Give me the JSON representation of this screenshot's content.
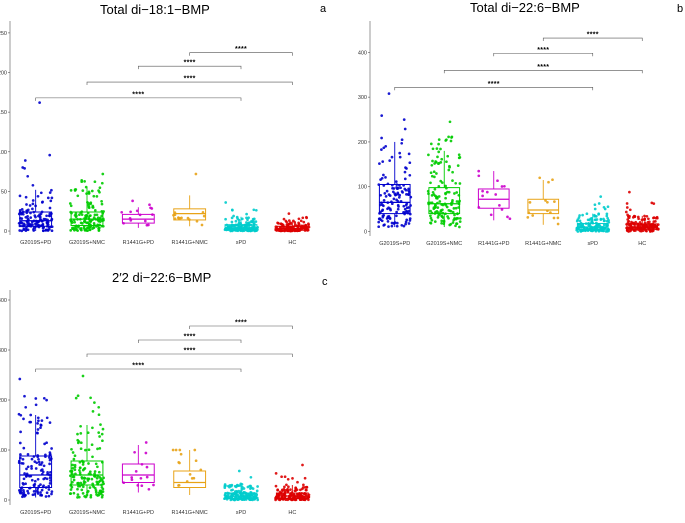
{
  "chart_data": [
    {
      "type": "boxplot",
      "panel_label": "a",
      "title": "Total di−18:1−BMP",
      "xlabel": "",
      "ylabel": "",
      "categories": [
        "G2019S+PD",
        "G2019S+NMC",
        "R1441G+PD",
        "R1441G+NMC",
        "sPD",
        "HC"
      ],
      "colors": [
        "#0000CD",
        "#00CC00",
        "#CC00CC",
        "#E8A317",
        "#00CCCC",
        "#DD0000"
      ],
      "ylim": [
        -5,
        265
      ],
      "yticks": [
        0,
        50,
        100,
        150,
        200,
        250
      ],
      "ytick_labels": [
        "0",
        "50",
        "100",
        "150",
        "200",
        "250"
      ],
      "boxes": [
        {
          "q1": 6,
          "median": 13,
          "q3": 24,
          "whisker_low": 0,
          "whisker_high": 52,
          "n": 140,
          "max": 162
        },
        {
          "q1": 7,
          "median": 15,
          "q3": 24,
          "whisker_low": 0,
          "whisker_high": 55,
          "n": 150,
          "max": 72
        },
        {
          "q1": 10,
          "median": 15,
          "q3": 21,
          "whisker_low": 4,
          "whisker_high": 30,
          "n": 15,
          "max": 38
        },
        {
          "q1": 14,
          "median": 22,
          "q3": 28,
          "whisker_low": 6,
          "whisker_high": 45,
          "n": 15,
          "max": 72
        },
        {
          "q1": 2,
          "median": 4,
          "q3": 8,
          "whisker_low": 0,
          "whisker_high": 18,
          "n": 150,
          "max": 36
        },
        {
          "q1": 1,
          "median": 3,
          "q3": 6,
          "whisker_low": 0,
          "whisker_high": 12,
          "n": 150,
          "max": 22
        }
      ],
      "significance": [
        {
          "from": "G2019S+PD",
          "to": "sPD",
          "y": 168,
          "label": "****"
        },
        {
          "from": "G2019S+NMC",
          "to": "HC",
          "y": 188,
          "label": "****"
        },
        {
          "from": "R1441G+PD",
          "to": "sPD",
          "y": 208,
          "label": "****"
        },
        {
          "from": "R1441G+NMC",
          "to": "HC",
          "y": 225,
          "label": "****"
        }
      ]
    },
    {
      "type": "boxplot",
      "panel_label": "b",
      "title": "Total di−22:6−BMP",
      "xlabel": "",
      "ylabel": "",
      "categories": [
        "G2019S+PD",
        "G2019S+NMC",
        "R1441G+PD",
        "R1441G+NMC",
        "sPD",
        "HC"
      ],
      "colors": [
        "#0000CD",
        "#00CC00",
        "#CC00CC",
        "#E8A317",
        "#00CCCC",
        "#DD0000"
      ],
      "ylim": [
        -10,
        470
      ],
      "yticks": [
        0,
        100,
        200,
        300,
        400
      ],
      "ytick_labels": [
        "0",
        "100",
        "200",
        "300",
        "400"
      ],
      "boxes": [
        {
          "q1": 40,
          "median": 65,
          "q3": 105,
          "whisker_low": 10,
          "whisker_high": 200,
          "n": 140,
          "max": 308
        },
        {
          "q1": 40,
          "median": 62,
          "q3": 98,
          "whisker_low": 10,
          "whisker_high": 180,
          "n": 150,
          "max": 245
        },
        {
          "q1": 52,
          "median": 72,
          "q3": 95,
          "whisker_low": 25,
          "whisker_high": 135,
          "n": 15,
          "max": 135
        },
        {
          "q1": 40,
          "median": 48,
          "q3": 72,
          "whisker_low": 15,
          "whisker_high": 115,
          "n": 15,
          "max": 120
        },
        {
          "q1": 5,
          "median": 10,
          "q3": 18,
          "whisker_low": 0,
          "whisker_high": 40,
          "n": 150,
          "max": 78
        },
        {
          "q1": 5,
          "median": 10,
          "q3": 17,
          "whisker_low": 0,
          "whisker_high": 35,
          "n": 150,
          "max": 88
        }
      ],
      "significance": [
        {
          "from": "G2019S+PD",
          "to": "sPD",
          "y": 322,
          "label": "****"
        },
        {
          "from": "G2019S+NMC",
          "to": "HC",
          "y": 360,
          "label": "****"
        },
        {
          "from": "R1441G+PD",
          "to": "sPD",
          "y": 398,
          "label": "****"
        },
        {
          "from": "R1441G+NMC",
          "to": "HC",
          "y": 432,
          "label": "****"
        }
      ]
    },
    {
      "type": "boxplot",
      "panel_label": "c",
      "title": "2′2 di−22:6−BMP",
      "xlabel": "",
      "ylabel": "",
      "categories": [
        "G2019S+PD",
        "G2019S+NMC",
        "R1441G+PD",
        "R1441G+NMC",
        "sPD",
        "HC"
      ],
      "colors": [
        "#0000CD",
        "#00CC00",
        "#CC00CC",
        "#E8A317",
        "#00CCCC",
        "#DD0000"
      ],
      "ylim": [
        -10,
        420
      ],
      "yticks": [
        0,
        100,
        200,
        300,
        400
      ],
      "ytick_labels": [
        "0",
        "100",
        "200",
        "300",
        "400"
      ],
      "boxes": [
        {
          "q1": 25,
          "median": 50,
          "q3": 88,
          "whisker_low": 5,
          "whisker_high": 170,
          "n": 140,
          "max": 242
        },
        {
          "q1": 30,
          "median": 50,
          "q3": 78,
          "whisker_low": 5,
          "whisker_high": 150,
          "n": 150,
          "max": 248
        },
        {
          "q1": 35,
          "median": 50,
          "q3": 72,
          "whisker_low": 15,
          "whisker_high": 110,
          "n": 15,
          "max": 115
        },
        {
          "q1": 25,
          "median": 35,
          "q3": 58,
          "whisker_low": 10,
          "whisker_high": 100,
          "n": 15,
          "max": 100
        },
        {
          "q1": 3,
          "median": 8,
          "q3": 14,
          "whisker_low": 0,
          "whisker_high": 30,
          "n": 150,
          "max": 58
        },
        {
          "q1": 3,
          "median": 8,
          "q3": 14,
          "whisker_low": 0,
          "whisker_high": 30,
          "n": 150,
          "max": 70
        }
      ],
      "significance": [
        {
          "from": "G2019S+PD",
          "to": "sPD",
          "y": 262,
          "label": "****"
        },
        {
          "from": "G2019S+NMC",
          "to": "HC",
          "y": 292,
          "label": "****"
        },
        {
          "from": "R1441G+PD",
          "to": "sPD",
          "y": 320,
          "label": "****"
        },
        {
          "from": "R1441G+NMC",
          "to": "HC",
          "y": 348,
          "label": "****"
        }
      ]
    }
  ]
}
